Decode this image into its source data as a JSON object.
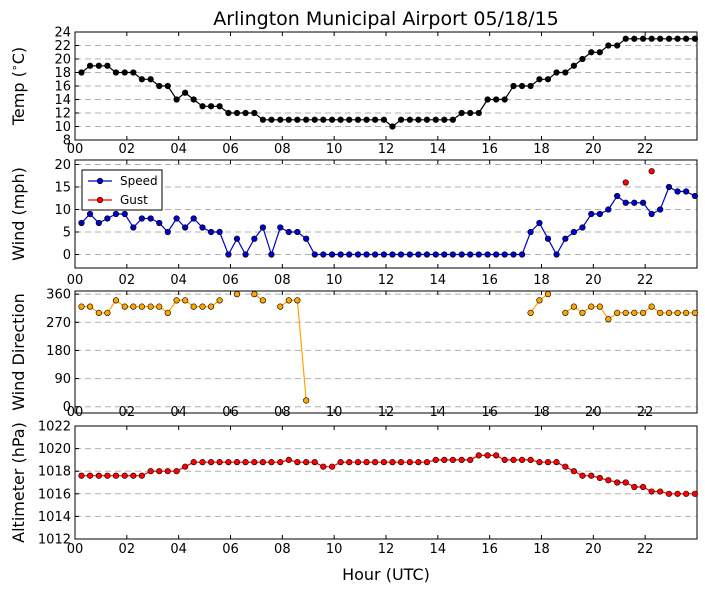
{
  "chart_data": {
    "type": "line",
    "title": "Arlington Municipal Airport 05/18/15",
    "xlabel": "Hour (UTC)",
    "x_ticks": [
      "00",
      "02",
      "04",
      "06",
      "08",
      "10",
      "12",
      "14",
      "16",
      "18",
      "20",
      "22"
    ],
    "xlim": [
      0,
      24
    ],
    "panels": [
      {
        "id": "temp",
        "ylabel": "Temp (∘C)",
        "ylabel_parts": [
          "Temp (",
          "∘",
          "C)"
        ],
        "ylim": [
          8,
          24
        ],
        "yticks": [
          8,
          10,
          12,
          14,
          16,
          18,
          20,
          22,
          24
        ],
        "grid": true,
        "series": [
          {
            "color": "#000000",
            "x": [
              0.25,
              0.58,
              0.92,
              1.25,
              1.58,
              1.92,
              2.25,
              2.58,
              2.92,
              3.25,
              3.58,
              3.92,
              4.25,
              4.58,
              4.92,
              5.25,
              5.58,
              5.92,
              6.25,
              6.58,
              6.92,
              7.25,
              7.58,
              7.92,
              8.25,
              8.58,
              8.92,
              9.25,
              9.58,
              9.92,
              10.25,
              10.58,
              10.92,
              11.25,
              11.58,
              11.92,
              12.25,
              12.58,
              12.92,
              13.25,
              13.58,
              13.92,
              14.25,
              14.58,
              14.92,
              15.25,
              15.58,
              15.92,
              16.25,
              16.58,
              16.92,
              17.25,
              17.58,
              17.92,
              18.25,
              18.58,
              18.92,
              19.25,
              19.58,
              19.92,
              20.25,
              20.58,
              20.92,
              21.25,
              21.58,
              21.92,
              22.25,
              22.58,
              22.92,
              23.25,
              23.58,
              23.92
            ],
            "y": [
              18,
              19,
              19,
              19,
              18,
              18,
              18,
              17,
              17,
              16,
              16,
              14,
              15,
              14,
              13,
              13,
              13,
              12,
              12,
              12,
              12,
              11,
              11,
              11,
              11,
              11,
              11,
              11,
              11,
              11,
              11,
              11,
              11,
              11,
              11,
              11,
              10,
              11,
              11,
              11,
              11,
              11,
              11,
              11,
              12,
              12,
              12,
              14,
              14,
              14,
              16,
              16,
              16,
              17,
              17,
              18,
              18,
              19,
              20,
              21,
              21,
              22,
              22,
              23,
              23,
              23,
              23,
              23,
              23,
              23,
              23,
              23
            ]
          }
        ]
      },
      {
        "id": "wind",
        "ylabel": "Wind (mph)",
        "ylim": [
          -3,
          21
        ],
        "yticks": [
          0,
          5,
          10,
          15,
          20
        ],
        "grid": true,
        "legend": "upper-left",
        "series": [
          {
            "name": "Speed",
            "color": "#0000cc",
            "x": [
              0.25,
              0.58,
              0.92,
              1.25,
              1.58,
              1.92,
              2.25,
              2.58,
              2.92,
              3.25,
              3.58,
              3.92,
              4.25,
              4.58,
              4.92,
              5.25,
              5.58,
              5.92,
              6.25,
              6.58,
              6.92,
              7.25,
              7.58,
              7.92,
              8.25,
              8.58,
              8.92,
              9.25,
              9.58,
              9.92,
              10.25,
              10.58,
              10.92,
              11.25,
              11.58,
              11.92,
              12.25,
              12.58,
              12.92,
              13.25,
              13.58,
              13.92,
              14.25,
              14.58,
              14.92,
              15.25,
              15.58,
              15.92,
              16.25,
              16.58,
              16.92,
              17.25,
              17.58,
              17.92,
              18.25,
              18.58,
              18.92,
              19.25,
              19.58,
              19.92,
              20.25,
              20.58,
              20.92,
              21.25,
              21.58,
              21.92,
              22.25,
              22.58,
              22.92,
              23.25,
              23.58,
              23.92
            ],
            "y": [
              7,
              9,
              7,
              8,
              9,
              9,
              6,
              8,
              8,
              7,
              5,
              8,
              6,
              8,
              6,
              5,
              5,
              0,
              3.5,
              0,
              3.5,
              6,
              0,
              6,
              5,
              5,
              3.5,
              0,
              0,
              0,
              0,
              0,
              0,
              0,
              0,
              0,
              0,
              0,
              0,
              0,
              0,
              0,
              0,
              0,
              0,
              0,
              0,
              0,
              0,
              0,
              0,
              0,
              5,
              7,
              3.5,
              0,
              3.5,
              5,
              6,
              9,
              9,
              10,
              13,
              11.5,
              11.5,
              11.5,
              9,
              10,
              15,
              14,
              14,
              13
            ]
          },
          {
            "name": "Gust",
            "color": "#ff0000",
            "x": [
              21.25,
              22.25
            ],
            "y": [
              16,
              18.5
            ]
          }
        ]
      },
      {
        "id": "dir",
        "ylabel": "Wind Direction",
        "ylim": [
          -20,
          370
        ],
        "yticks": [
          0,
          90,
          180,
          270,
          360
        ],
        "grid": true,
        "series": [
          {
            "color": "#ffa500",
            "x": [
              0.25,
              0.58,
              0.92,
              1.25,
              1.58,
              1.92,
              2.25,
              2.58,
              2.92,
              3.25,
              3.58,
              3.92,
              4.25,
              4.58,
              4.92,
              5.25,
              5.58,
              5.92,
              6.25,
              6.58,
              6.92,
              7.25,
              7.58,
              7.92,
              8.25,
              8.58,
              8.92,
              9.25,
              9.58,
              9.92,
              10.25,
              10.58,
              10.92,
              11.25,
              11.58,
              11.92,
              12.25,
              12.58,
              12.92,
              13.25,
              13.58,
              13.92,
              14.25,
              14.58,
              14.92,
              15.25,
              15.58,
              15.92,
              16.25,
              16.58,
              16.92,
              17.25,
              17.58,
              17.92,
              18.25,
              18.58,
              18.92,
              19.25,
              19.58,
              19.92,
              20.25,
              20.58,
              20.92,
              21.25,
              21.58,
              21.92,
              22.25,
              22.58,
              22.92,
              23.25,
              23.58,
              23.92
            ],
            "y": [
              320,
              320,
              300,
              300,
              340,
              320,
              320,
              320,
              320,
              320,
              300,
              340,
              340,
              320,
              320,
              320,
              340,
              null,
              360,
              null,
              360,
              340,
              null,
              320,
              340,
              340,
              20,
              null,
              null,
              null,
              null,
              null,
              null,
              null,
              null,
              null,
              null,
              null,
              null,
              null,
              null,
              null,
              null,
              null,
              null,
              null,
              null,
              null,
              null,
              null,
              null,
              null,
              300,
              340,
              360,
              null,
              300,
              320,
              300,
              320,
              320,
              280,
              300,
              300,
              300,
              300,
              320,
              300,
              300,
              300,
              300,
              300
            ]
          }
        ]
      },
      {
        "id": "alt",
        "ylabel": "Altimeter (hPa)",
        "ylim": [
          1012,
          1022
        ],
        "yticks": [
          1012,
          1014,
          1016,
          1018,
          1020,
          1022
        ],
        "grid": true,
        "series": [
          {
            "color": "#ff0000",
            "x": [
              0.25,
              0.58,
              0.92,
              1.25,
              1.58,
              1.92,
              2.25,
              2.58,
              2.92,
              3.25,
              3.58,
              3.92,
              4.25,
              4.58,
              4.92,
              5.25,
              5.58,
              5.92,
              6.25,
              6.58,
              6.92,
              7.25,
              7.58,
              7.92,
              8.25,
              8.58,
              8.92,
              9.25,
              9.58,
              9.92,
              10.25,
              10.58,
              10.92,
              11.25,
              11.58,
              11.92,
              12.25,
              12.58,
              12.92,
              13.25,
              13.58,
              13.92,
              14.25,
              14.58,
              14.92,
              15.25,
              15.58,
              15.92,
              16.25,
              16.58,
              16.92,
              17.25,
              17.58,
              17.92,
              18.25,
              18.58,
              18.92,
              19.25,
              19.58,
              19.92,
              20.25,
              20.58,
              20.92,
              21.25,
              21.58,
              21.92,
              22.25,
              22.58,
              22.92,
              23.25,
              23.58,
              23.92
            ],
            "y": [
              1017.6,
              1017.6,
              1017.6,
              1017.6,
              1017.6,
              1017.6,
              1017.6,
              1017.6,
              1018,
              1018,
              1018,
              1018,
              1018.4,
              1018.8,
              1018.8,
              1018.8,
              1018.8,
              1018.8,
              1018.8,
              1018.8,
              1018.8,
              1018.8,
              1018.8,
              1018.8,
              1019,
              1018.8,
              1018.8,
              1018.8,
              1018.4,
              1018.4,
              1018.8,
              1018.8,
              1018.8,
              1018.8,
              1018.8,
              1018.8,
              1018.8,
              1018.8,
              1018.8,
              1018.8,
              1018.8,
              1019,
              1019,
              1019,
              1019,
              1019,
              1019.4,
              1019.4,
              1019.4,
              1019,
              1019,
              1019,
              1019,
              1018.8,
              1018.8,
              1018.8,
              1018.4,
              1018,
              1017.6,
              1017.6,
              1017.4,
              1017.2,
              1017,
              1017,
              1016.6,
              1016.6,
              1016.2,
              1016.2,
              1016,
              1016,
              1016,
              1016
            ]
          }
        ]
      }
    ]
  }
}
